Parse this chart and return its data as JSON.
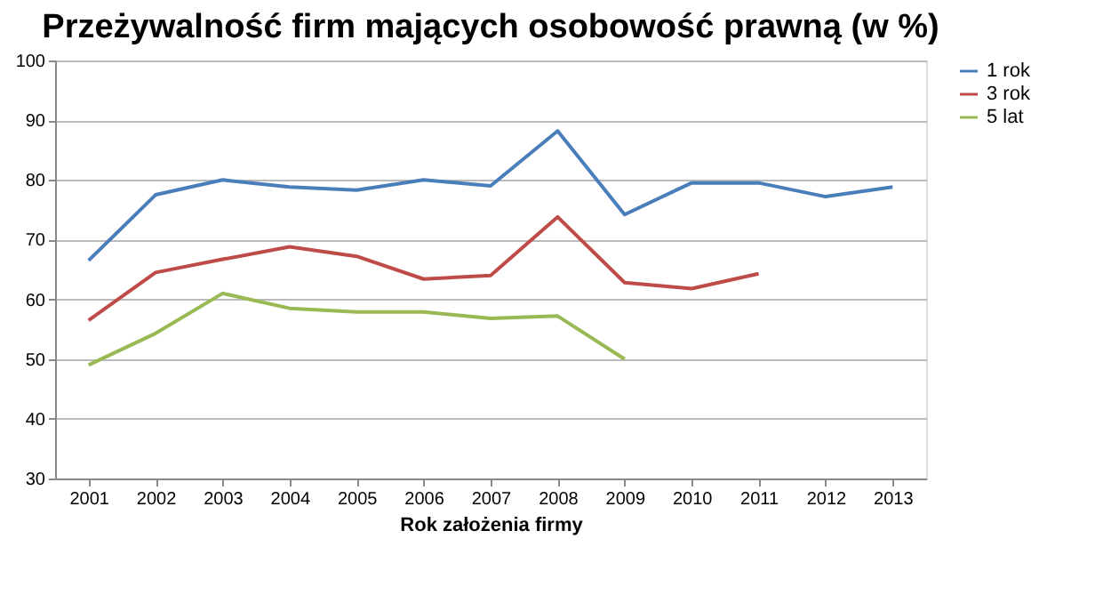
{
  "chart_data": {
    "type": "line",
    "title": "Przeżywalność firm mających osobowość prawną (w %)",
    "xlabel": "Rok założenia firmy",
    "categories": [
      "2001",
      "2002",
      "2003",
      "2004",
      "2005",
      "2006",
      "2007",
      "2008",
      "2009",
      "2010",
      "2011",
      "2012",
      "2013"
    ],
    "series": [
      {
        "name": "1 rok",
        "color": "#4a7ebb",
        "values": [
          66.5,
          77.5,
          80,
          78.8,
          78.3,
          80,
          79,
          88.2,
          74.2,
          79.5,
          79.5,
          77.2,
          78.8
        ]
      },
      {
        "name": "3 rok",
        "color": "#be4b48",
        "values": [
          56.5,
          64.5,
          66.7,
          68.8,
          67.2,
          63.4,
          64,
          73.8,
          62.8,
          61.8,
          64.3,
          null,
          null
        ]
      },
      {
        "name": "5 lat",
        "color": "#98b954",
        "values": [
          49,
          54.3,
          61,
          58.5,
          57.9,
          57.9,
          56.8,
          57.2,
          50,
          null,
          null,
          null,
          null
        ]
      }
    ],
    "ylim": [
      30,
      100
    ],
    "yticks": [
      30,
      40,
      50,
      60,
      70,
      80,
      90,
      100
    ],
    "grid": "y",
    "legend": "right",
    "marker": "none",
    "line_style": "solid"
  }
}
